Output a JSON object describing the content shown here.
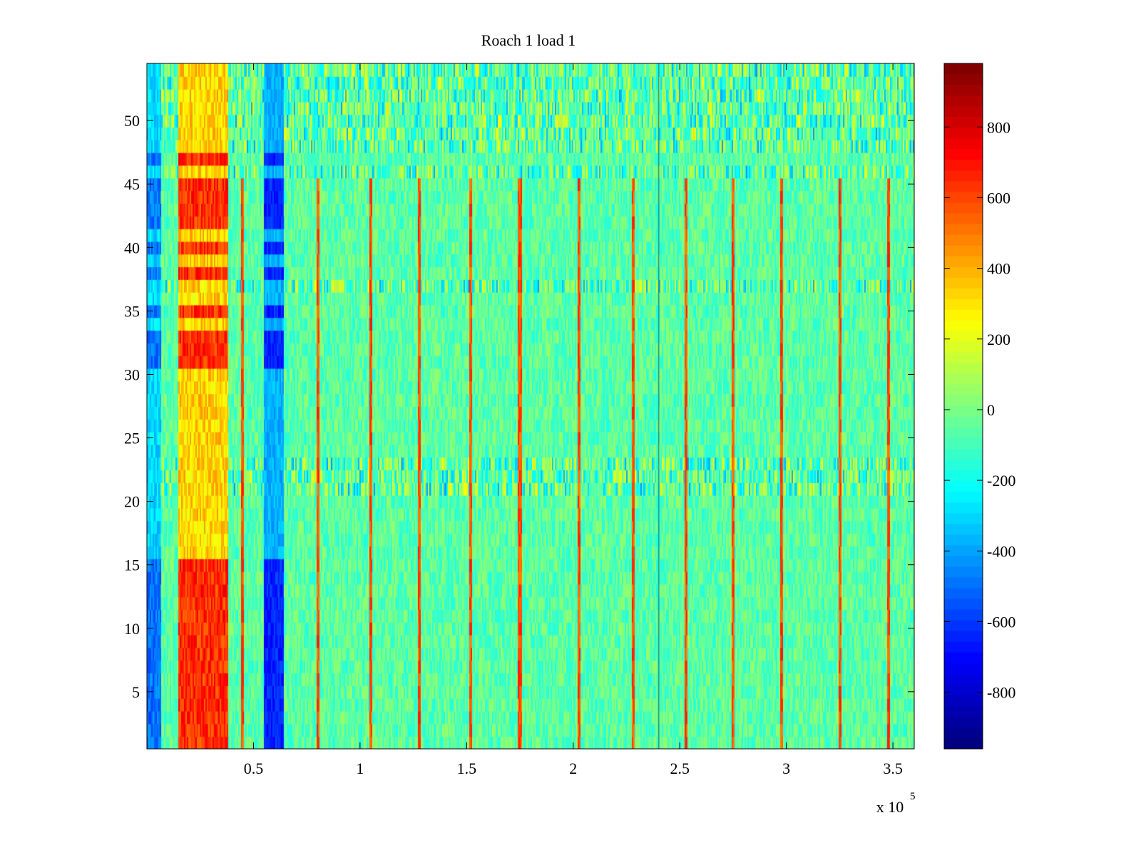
{
  "chart_data": {
    "type": "heatmap",
    "title": "Roach 1 load 1",
    "xlabel": "",
    "ylabel": "",
    "x_exponent_label": "x 10",
    "x_exponent_power": "5",
    "xlim": [
      0.5,
      360000
    ],
    "ylim": [
      0.5,
      54.5
    ],
    "x_ticks": [
      50000,
      100000,
      150000,
      200000,
      250000,
      300000,
      350000
    ],
    "x_tick_labels": [
      "0.5",
      "1",
      "1.5",
      "2",
      "2.5",
      "3",
      "3.5"
    ],
    "y_ticks": [
      5,
      10,
      15,
      20,
      25,
      30,
      35,
      40,
      45,
      50
    ],
    "y_tick_labels": [
      "5",
      "10",
      "15",
      "20",
      "25",
      "30",
      "35",
      "40",
      "45",
      "50"
    ],
    "rows": 54,
    "colormap": "jet",
    "clim": [
      -960,
      980
    ],
    "colorbar": {
      "ticks": [
        -800,
        -600,
        -400,
        -200,
        0,
        200,
        400,
        600,
        800
      ],
      "tick_labels": [
        "-800",
        "-600",
        "-400",
        "-200",
        "0",
        "200",
        "400",
        "600",
        "800"
      ],
      "location": "right"
    },
    "features": {
      "baseline_value": -60,
      "high_band_x": [
        15000,
        38000
      ],
      "high_band_value": 650,
      "low_band_x": [
        55000,
        64000
      ],
      "low_band_value": -650,
      "left_edge_x": [
        0,
        7000
      ],
      "left_edge_value": -500,
      "strong_rows": [
        1,
        2,
        3,
        4,
        5,
        6,
        7,
        8,
        9,
        10,
        11,
        12,
        13,
        14,
        15,
        31,
        32,
        33,
        35,
        38,
        40,
        42,
        43,
        44,
        45,
        47
      ],
      "spike_x": [
        45000,
        80000,
        105000,
        128000,
        152000,
        175000,
        203000,
        228000,
        253000,
        275000,
        298000,
        325000,
        348000
      ],
      "spike_value": 700,
      "dark_line_x": 240000,
      "noisy_rows": [
        21,
        22,
        23,
        37,
        46
      ],
      "upper_noisy_rows": [
        48,
        49,
        50,
        51,
        52,
        53,
        54
      ]
    }
  }
}
